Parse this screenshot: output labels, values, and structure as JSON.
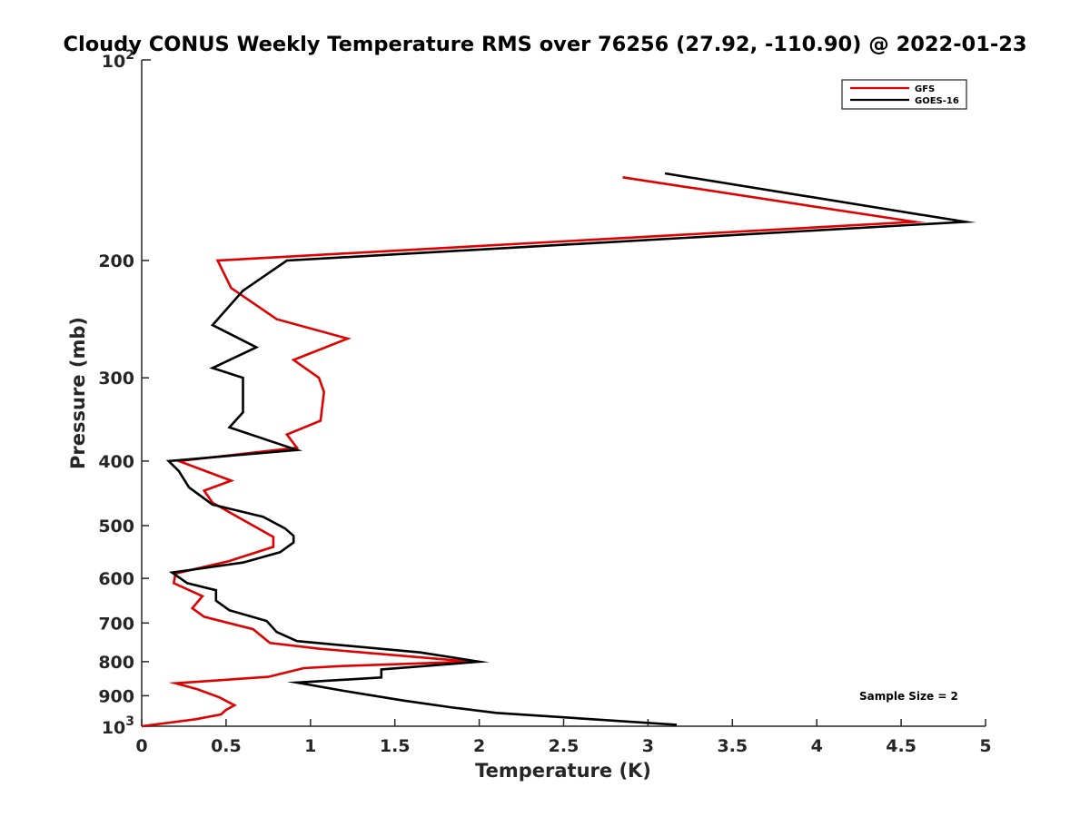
{
  "chart_data": {
    "type": "line",
    "title": "Cloudy CONUS Weekly Temperature RMS over 76256 (27.92, -110.90) @ 2022-01-23",
    "xlabel": "Temperature (K)",
    "ylabel": "Pressure (mb)",
    "xlim": [
      0,
      5
    ],
    "ylim": [
      100,
      1000
    ],
    "yscale": "log",
    "yreversed": true,
    "x_ticks": [
      0,
      0.5,
      1,
      1.5,
      2,
      2.5,
      3,
      3.5,
      4,
      4.5,
      5
    ],
    "x_tick_labels": [
      "0",
      "0.5",
      "1",
      "1.5",
      "2",
      "2.5",
      "3",
      "3.5",
      "4",
      "4.5",
      "5"
    ],
    "y_ticks": [
      200,
      300,
      400,
      500,
      600,
      700,
      800,
      900
    ],
    "y_tick_labels": [
      "200",
      "300",
      "400",
      "500",
      "600",
      "700",
      "800",
      "900"
    ],
    "y_decade_ticks": [
      {
        "value": 100,
        "base": "10",
        "exponent": "2"
      },
      {
        "value": 1000,
        "base": "10",
        "exponent": "3"
      }
    ],
    "legend_position": "top-right",
    "annotation": "Sample Size = 2",
    "series": [
      {
        "name": "GFS",
        "color": "#e00000",
        "points": [
          [
            2.85,
            150
          ],
          [
            4.58,
            175
          ],
          [
            0.45,
            200
          ],
          [
            0.53,
            220
          ],
          [
            0.8,
            245
          ],
          [
            1.22,
            262
          ],
          [
            0.9,
            282
          ],
          [
            1.05,
            300
          ],
          [
            1.08,
            315
          ],
          [
            1.06,
            348
          ],
          [
            0.86,
            365
          ],
          [
            0.92,
            382
          ],
          [
            0.22,
            400
          ],
          [
            0.53,
            428
          ],
          [
            0.37,
            443
          ],
          [
            0.42,
            462
          ],
          [
            0.78,
            520
          ],
          [
            0.78,
            538
          ],
          [
            0.52,
            565
          ],
          [
            0.2,
            590
          ],
          [
            0.19,
            610
          ],
          [
            0.36,
            638
          ],
          [
            0.3,
            665
          ],
          [
            0.37,
            685
          ],
          [
            0.66,
            715
          ],
          [
            0.76,
            750
          ],
          [
            1.05,
            765
          ],
          [
            1.95,
            800
          ],
          [
            1.2,
            812
          ],
          [
            0.96,
            818
          ],
          [
            0.75,
            843
          ],
          [
            0.2,
            862
          ],
          [
            0.33,
            880
          ],
          [
            0.46,
            905
          ],
          [
            0.55,
            930
          ],
          [
            0.5,
            945
          ],
          [
            0.47,
            960
          ],
          [
            0.32,
            976
          ],
          [
            0.0,
            1000
          ]
        ]
      },
      {
        "name": "GOES-16",
        "color": "#000000",
        "points": [
          [
            3.1,
            148
          ],
          [
            4.88,
            175
          ],
          [
            0.86,
            200
          ],
          [
            0.6,
            222
          ],
          [
            0.42,
            250
          ],
          [
            0.68,
            270
          ],
          [
            0.42,
            290
          ],
          [
            0.6,
            300
          ],
          [
            0.6,
            330
          ],
          [
            0.6,
            338
          ],
          [
            0.52,
            356
          ],
          [
            0.92,
            385
          ],
          [
            0.16,
            400
          ],
          [
            0.22,
            414
          ],
          [
            0.28,
            438
          ],
          [
            0.42,
            465
          ],
          [
            0.72,
            485
          ],
          [
            0.85,
            505
          ],
          [
            0.9,
            518
          ],
          [
            0.9,
            530
          ],
          [
            0.82,
            548
          ],
          [
            0.6,
            568
          ],
          [
            0.18,
            588
          ],
          [
            0.27,
            610
          ],
          [
            0.44,
            625
          ],
          [
            0.44,
            648
          ],
          [
            0.52,
            670
          ],
          [
            0.74,
            695
          ],
          [
            0.8,
            722
          ],
          [
            0.92,
            745
          ],
          [
            1.65,
            775
          ],
          [
            2.0,
            800
          ],
          [
            1.42,
            822
          ],
          [
            1.42,
            845
          ],
          [
            0.92,
            860
          ],
          [
            1.2,
            885
          ],
          [
            1.55,
            915
          ],
          [
            1.85,
            938
          ],
          [
            2.1,
            955
          ],
          [
            3.17,
            995
          ]
        ]
      }
    ]
  }
}
